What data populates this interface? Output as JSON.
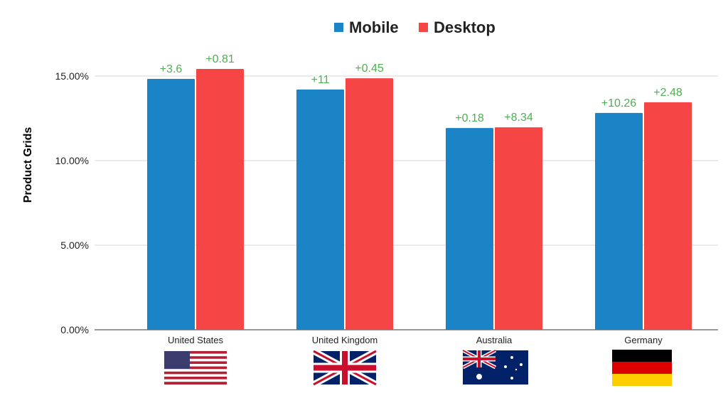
{
  "chart_data": {
    "type": "bar",
    "ylabel": "Product Grids",
    "categories": [
      "United States",
      "United Kingdom",
      "Australia",
      "Germany"
    ],
    "series": [
      {
        "name": "Mobile",
        "color": "#1a84c6",
        "values": [
          14.83,
          14.2,
          11.93,
          12.82
        ],
        "labels": [
          "+3.6",
          "+11",
          "+0.18",
          "+10.26"
        ]
      },
      {
        "name": "Desktop",
        "color": "#f64545",
        "values": [
          15.42,
          14.87,
          11.97,
          13.45
        ],
        "labels": [
          "+0.81",
          "+0.45",
          "+8.34",
          "+2.48"
        ]
      }
    ],
    "yticks": [
      0,
      5,
      10,
      15
    ],
    "ytick_labels": [
      "0.00%",
      "5.00%",
      "10.00%",
      "15.00%"
    ],
    "ylim": [
      0,
      15.8
    ],
    "grid": true,
    "legend": "top-center",
    "data_label_color": "#4cb050",
    "flags": [
      "us-flag",
      "uk-flag",
      "australia-flag",
      "germany-flag"
    ]
  }
}
